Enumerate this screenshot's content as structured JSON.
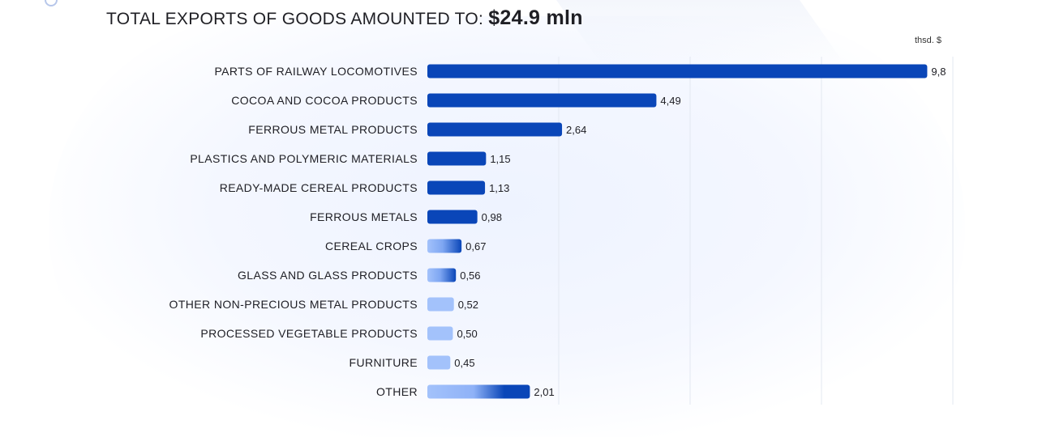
{
  "title": {
    "prefix": "TOTAL EXPORTS OF GOODS AMOUNTED TO:",
    "amount": "$24.9 mln"
  },
  "unit": "thsd. $",
  "colors": {
    "bar_dark": "#0a46b8",
    "bar_light": "#a3c2fb",
    "grid": "#e3e8f2"
  },
  "chart_data": {
    "type": "bar",
    "orientation": "horizontal",
    "title": "TOTAL EXPORTS OF GOODS AMOUNTED TO: $24.9 mln",
    "ylabel": "",
    "xlabel": "thsd. $",
    "xlim": [
      0,
      10
    ],
    "grid": true,
    "categories": [
      "PARTS OF RAILWAY LOCOMOTIVES",
      "COCOA AND COCOA PRODUCTS",
      "FERROUS METAL PRODUCTS",
      "PLASTICS AND POLYMERIC MATERIALS",
      "READY-MADE CEREAL PRODUCTS",
      "FERROUS METALS",
      "CEREAL CROPS",
      "GLASS AND GLASS PRODUCTS",
      "OTHER NON-PRECIOUS METAL PRODUCTS",
      "PROCESSED VEGETABLE PRODUCTS",
      "FURNITURE",
      "OTHER"
    ],
    "values": [
      9.8,
      4.49,
      2.64,
      1.15,
      1.13,
      0.98,
      0.67,
      0.56,
      0.52,
      0.5,
      0.45,
      2.01
    ],
    "value_labels": [
      "9,8",
      "4,49",
      "2,64",
      "1,15",
      "1,13",
      "0,98",
      "0,67",
      "0,56",
      "0,52",
      "0,50",
      "0,45",
      "2,01"
    ],
    "bar_styles": [
      "dark",
      "dark",
      "dark",
      "dark",
      "dark",
      "dark",
      "gradient",
      "gradient",
      "light",
      "light",
      "light",
      "gradient"
    ]
  }
}
